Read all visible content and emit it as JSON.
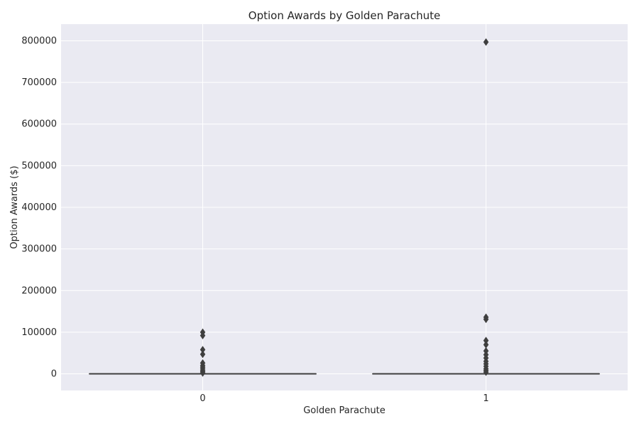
{
  "chart_data": {
    "type": "box",
    "title": "Option Awards by Golden Parachute",
    "xlabel": "Golden Parachute",
    "ylabel": "Option Awards ($)",
    "categories": [
      "0",
      "1"
    ],
    "ylim": [
      -40000,
      840000
    ],
    "yticks": [
      0,
      100000,
      200000,
      300000,
      400000,
      500000,
      600000,
      700000,
      800000
    ],
    "ytick_labels": [
      "0",
      "100000",
      "200000",
      "300000",
      "400000",
      "500000",
      "600000",
      "700000",
      "800000"
    ],
    "grid": true,
    "boxes": [
      {
        "category": "0",
        "q1": 0,
        "median": 0,
        "q3": 0,
        "whisker_low": 0,
        "whisker_high": 0,
        "outliers": [
          100000,
          92000,
          58000,
          47000,
          26000,
          20000,
          16000,
          12000,
          8000,
          5000,
          2000
        ]
      },
      {
        "category": "1",
        "q1": 0,
        "median": 0,
        "q3": 0,
        "whisker_low": 0,
        "whisker_high": 0,
        "outliers": [
          797000,
          136000,
          131000,
          80000,
          70000,
          55000,
          46000,
          38000,
          30000,
          24000,
          18000,
          12000,
          8000,
          4000
        ]
      }
    ]
  },
  "colors": {
    "plot_background": "#eaeaf2",
    "grid": "#ffffff",
    "box_line": "#3f3f3f",
    "outlier": "#3f3f3f",
    "text": "#262626"
  }
}
